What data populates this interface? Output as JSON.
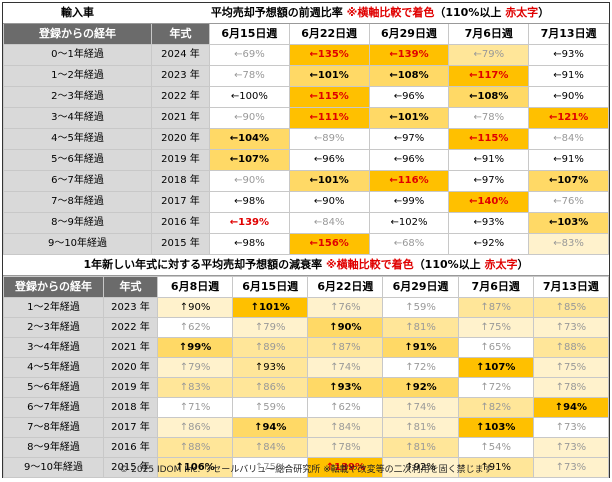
{
  "top": {
    "corner": "輸入車",
    "title": "平均売却予想額の前週比率",
    "note_prefix": "※横軸比較で着色",
    "note_paren1": "（110%以上",
    "note_red": "赤太字",
    "note_paren2": "）",
    "h_age": "登録からの経年",
    "h_year": "年式",
    "weeks": [
      "6月15日週",
      "6月22日週",
      "6月29日週",
      "7月6日週",
      "7月13日週"
    ],
    "rows": [
      {
        "age": "0～1年経過",
        "year": "2024 年",
        "cells": [
          [
            "←69%",
            "c0",
            "dim"
          ],
          [
            "←135%",
            "c4",
            "red"
          ],
          [
            "←139%",
            "c4",
            "red"
          ],
          [
            "←79%",
            "c2",
            "dim"
          ],
          [
            "←93%",
            "c0",
            ""
          ]
        ]
      },
      {
        "age": "1～2年経過",
        "year": "2023 年",
        "cells": [
          [
            "←78%",
            "c0",
            "dim"
          ],
          [
            "←101%",
            "c3",
            "bold"
          ],
          [
            "←108%",
            "c3",
            "bold"
          ],
          [
            "←117%",
            "c4",
            "red"
          ],
          [
            "←91%",
            "c0",
            ""
          ]
        ]
      },
      {
        "age": "2～3年経過",
        "year": "2022 年",
        "cells": [
          [
            "←100%",
            "c0",
            ""
          ],
          [
            "←115%",
            "c4",
            "red"
          ],
          [
            "←96%",
            "c0",
            ""
          ],
          [
            "←108%",
            "c3",
            "bold"
          ],
          [
            "←90%",
            "c0",
            ""
          ]
        ]
      },
      {
        "age": "3～4年経過",
        "year": "2021 年",
        "cells": [
          [
            "←90%",
            "c0",
            "dim"
          ],
          [
            "←111%",
            "c4",
            "red"
          ],
          [
            "←101%",
            "c3",
            "bold"
          ],
          [
            "←78%",
            "c0",
            "dim"
          ],
          [
            "←121%",
            "c4",
            "red"
          ]
        ]
      },
      {
        "age": "4～5年経過",
        "year": "2020 年",
        "cells": [
          [
            "←104%",
            "c3",
            "bold"
          ],
          [
            "←89%",
            "c0",
            "dim"
          ],
          [
            "←97%",
            "c0",
            ""
          ],
          [
            "←115%",
            "c4",
            "red"
          ],
          [
            "←84%",
            "c0",
            "dim"
          ]
        ]
      },
      {
        "age": "5～6年経過",
        "year": "2019 年",
        "cells": [
          [
            "←107%",
            "c3",
            "bold"
          ],
          [
            "←96%",
            "c0",
            ""
          ],
          [
            "←96%",
            "c0",
            ""
          ],
          [
            "←91%",
            "c0",
            ""
          ],
          [
            "←91%",
            "c0",
            ""
          ]
        ]
      },
      {
        "age": "6～7年経過",
        "year": "2018 年",
        "cells": [
          [
            "←90%",
            "c0",
            "dim"
          ],
          [
            "←101%",
            "c3",
            "bold"
          ],
          [
            "←116%",
            "c4",
            "red"
          ],
          [
            "←97%",
            "c0",
            ""
          ],
          [
            "←107%",
            "c3",
            "bold"
          ]
        ]
      },
      {
        "age": "7～8年経過",
        "year": "2017 年",
        "cells": [
          [
            "←98%",
            "c0",
            ""
          ],
          [
            "←90%",
            "c0",
            ""
          ],
          [
            "←99%",
            "c0",
            ""
          ],
          [
            "←140%",
            "c4",
            "red"
          ],
          [
            "←76%",
            "c0",
            "dim"
          ]
        ]
      },
      {
        "age": "8～9年経過",
        "year": "2016 年",
        "cells": [
          [
            "←139%",
            "c0",
            "red"
          ],
          [
            "←84%",
            "c0",
            "dim"
          ],
          [
            "←102%",
            "c0",
            ""
          ],
          [
            "←93%",
            "c0",
            ""
          ],
          [
            "←103%",
            "c3",
            "bold"
          ]
        ]
      },
      {
        "age": "9～10年経過",
        "year": "2015 年",
        "cells": [
          [
            "←98%",
            "c0",
            ""
          ],
          [
            "←156%",
            "c4",
            "red"
          ],
          [
            "←68%",
            "c0",
            "dim"
          ],
          [
            "←92%",
            "c0",
            ""
          ],
          [
            "←83%",
            "c1",
            "dim"
          ]
        ]
      }
    ]
  },
  "bottom": {
    "title": "1年新しい年式に対する平均売却予想額の減衰率",
    "note_prefix": "※横軸比較で着色",
    "note_paren1": "（110%以上",
    "note_red": "赤太字",
    "note_paren2": "）",
    "h_age": "登録からの経年",
    "h_year": "年式",
    "weeks": [
      "6月8日週",
      "6月15日週",
      "6月22日週",
      "6月29日週",
      "7月6日週",
      "7月13日週"
    ],
    "rows": [
      {
        "age": "1～2年経過",
        "year": "2023 年",
        "cells": [
          [
            "↑90%",
            "c1",
            ""
          ],
          [
            "↑101%",
            "c4",
            "bold"
          ],
          [
            "↑76%",
            "c1",
            "dim"
          ],
          [
            "↑59%",
            "c0",
            "dim"
          ],
          [
            "↑87%",
            "c2",
            "dim"
          ],
          [
            "↑85%",
            "c2",
            "dim"
          ]
        ]
      },
      {
        "age": "2～3年経過",
        "year": "2022 年",
        "cells": [
          [
            "↑62%",
            "c0",
            "dim"
          ],
          [
            "↑79%",
            "c1",
            "dim"
          ],
          [
            "↑90%",
            "c3",
            "bold"
          ],
          [
            "↑81%",
            "c2",
            "dim"
          ],
          [
            "↑75%",
            "c1",
            "dim"
          ],
          [
            "↑73%",
            "c1",
            "dim"
          ]
        ]
      },
      {
        "age": "3～4年経過",
        "year": "2021 年",
        "cells": [
          [
            "↑99%",
            "c3",
            "bold"
          ],
          [
            "↑89%",
            "c2",
            "dim"
          ],
          [
            "↑87%",
            "c2",
            "dim"
          ],
          [
            "↑91%",
            "c3",
            "bold"
          ],
          [
            "↑65%",
            "c0",
            "dim"
          ],
          [
            "↑88%",
            "c2",
            "dim"
          ]
        ]
      },
      {
        "age": "4～5年経過",
        "year": "2020 年",
        "cells": [
          [
            "↑79%",
            "c1",
            "dim"
          ],
          [
            "↑93%",
            "c2",
            ""
          ],
          [
            "↑74%",
            "c1",
            "dim"
          ],
          [
            "↑72%",
            "c0",
            "dim"
          ],
          [
            "↑107%",
            "c4",
            "bold"
          ],
          [
            "↑75%",
            "c1",
            "dim"
          ]
        ]
      },
      {
        "age": "5～6年経過",
        "year": "2019 年",
        "cells": [
          [
            "↑83%",
            "c2",
            "dim"
          ],
          [
            "↑86%",
            "c2",
            "dim"
          ],
          [
            "↑93%",
            "c3",
            "bold"
          ],
          [
            "↑92%",
            "c3",
            "bold"
          ],
          [
            "↑72%",
            "c0",
            "dim"
          ],
          [
            "↑78%",
            "c1",
            "dim"
          ]
        ]
      },
      {
        "age": "6～7年経過",
        "year": "2018 年",
        "cells": [
          [
            "↑71%",
            "c0",
            "dim"
          ],
          [
            "↑59%",
            "c0",
            "dim"
          ],
          [
            "↑62%",
            "c0",
            "dim"
          ],
          [
            "↑74%",
            "c1",
            "dim"
          ],
          [
            "↑82%",
            "c2",
            "dim"
          ],
          [
            "↑94%",
            "c4",
            "bold"
          ]
        ]
      },
      {
        "age": "7～8年経過",
        "year": "2017 年",
        "cells": [
          [
            "↑86%",
            "c1",
            "dim"
          ],
          [
            "↑94%",
            "c3",
            "bold"
          ],
          [
            "↑84%",
            "c1",
            "dim"
          ],
          [
            "↑81%",
            "c1",
            "dim"
          ],
          [
            "↑103%",
            "c4",
            "bold"
          ],
          [
            "↑73%",
            "c0",
            "dim"
          ]
        ]
      },
      {
        "age": "8～9年経過",
        "year": "2016 年",
        "cells": [
          [
            "↑88%",
            "c2",
            "dim"
          ],
          [
            "↑84%",
            "c2",
            "dim"
          ],
          [
            "↑78%",
            "c1",
            "dim"
          ],
          [
            "↑81%",
            "c2",
            "dim"
          ],
          [
            "↑54%",
            "c0",
            "dim"
          ],
          [
            "↑73%",
            "c1",
            "dim"
          ]
        ]
      },
      {
        "age": "9～10年経過",
        "year": "2015 年",
        "cells": [
          [
            "↑106%",
            "c2",
            "bold"
          ],
          [
            "↑75%",
            "c0",
            "dim"
          ],
          [
            "↑139%",
            "c4",
            "red"
          ],
          [
            "↑92%",
            "c1",
            ""
          ],
          [
            "↑91%",
            "c2",
            ""
          ],
          [
            "↑73%",
            "c1",
            "dim"
          ]
        ]
      }
    ]
  },
  "footer": "© 2025 IDOM Inc. リセールバリュー総合研究所 ※転載や改変等の二次利用を固く禁じます"
}
